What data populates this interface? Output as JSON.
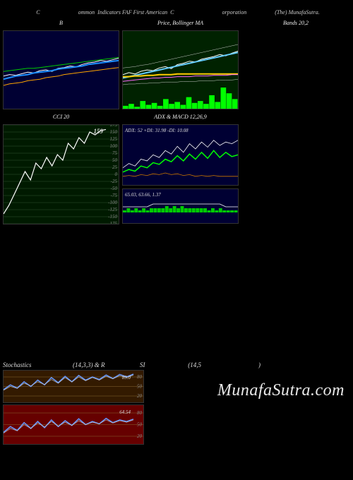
{
  "header": {
    "left": "C",
    "mid1": "ommon  Indicators FAF First American  C",
    "mid2": "orporation",
    "right": "(The) MunafaSutra."
  },
  "panels": {
    "topLeft": {
      "title": "B",
      "bg": "#000033",
      "lines": [
        {
          "color": "#ffffff",
          "width": 1,
          "data": [
            42,
            44,
            43,
            45,
            47,
            46,
            49,
            50,
            48,
            52,
            53,
            55,
            54,
            57,
            59,
            60,
            62,
            61,
            63,
            65
          ]
        },
        {
          "color": "#1e90ff",
          "width": 2,
          "data": [
            38,
            40,
            42,
            43,
            44,
            46,
            47,
            48,
            49,
            51,
            52,
            53,
            54,
            55,
            57,
            58,
            59,
            60,
            61,
            62
          ]
        },
        {
          "color": "#ffa500",
          "width": 1,
          "data": [
            30,
            32,
            33,
            34,
            36,
            37,
            38,
            40,
            41,
            42,
            44,
            45,
            46,
            47,
            48,
            49,
            50,
            51,
            52,
            53
          ]
        },
        {
          "color": "#00cc00",
          "width": 1,
          "data": [
            48,
            49,
            50,
            51,
            52,
            52,
            53,
            54,
            55,
            56,
            57,
            58,
            59,
            60,
            61,
            62,
            63,
            64,
            65,
            66
          ]
        }
      ]
    },
    "topMid": {
      "title": "Price,   Bollinger   MA",
      "bg": "#002200",
      "lines": [
        {
          "color": "#ffffff",
          "width": 1,
          "data": [
            35,
            38,
            36,
            40,
            42,
            41,
            45,
            47,
            44,
            50,
            52,
            55,
            54,
            58,
            60,
            62,
            65,
            63,
            67,
            70
          ]
        },
        {
          "color": "#66ccff",
          "width": 2,
          "data": [
            30,
            32,
            34,
            36,
            38,
            40,
            42,
            44,
            46,
            48,
            50,
            52,
            54,
            56,
            58,
            60,
            62,
            64,
            66,
            68
          ]
        },
        {
          "color": "#ffcc00",
          "width": 2,
          "data": [
            32,
            32,
            33,
            33,
            34,
            34,
            35,
            35,
            35,
            36,
            36,
            36,
            36,
            36,
            36,
            36,
            36,
            36,
            36,
            36
          ]
        },
        {
          "color": "#ff66ff",
          "width": 1,
          "data": [
            25,
            26,
            27,
            28,
            29,
            30,
            30,
            31,
            31,
            32,
            32,
            32,
            33,
            33,
            33,
            34,
            34,
            34,
            35,
            35
          ]
        },
        {
          "color": "#cccccc",
          "width": 0.5,
          "data": [
            45,
            46,
            47,
            49,
            50,
            52,
            54,
            56,
            58,
            60,
            62,
            64,
            66,
            68,
            70,
            72,
            74,
            76,
            78,
            80
          ]
        },
        {
          "color": "#cccccc",
          "width": 0.5,
          "data": [
            20,
            21,
            21,
            22,
            22,
            23,
            23,
            24,
            24,
            24,
            25,
            25,
            25,
            26,
            26,
            26,
            27,
            27,
            27,
            28
          ]
        }
      ],
      "volume": {
        "color": "#00ff00",
        "data": [
          3,
          5,
          2,
          8,
          4,
          6,
          3,
          10,
          5,
          7,
          4,
          12,
          6,
          8,
          5,
          14,
          7,
          22,
          16,
          10
        ]
      }
    },
    "topRight": {
      "title": "Bands 20,2"
    },
    "cci": {
      "title": "CCI 20",
      "bg": "#001a00",
      "grid_color": "#335533",
      "ticks": [
        175,
        150,
        125,
        100,
        75,
        50,
        25,
        0,
        -25,
        -50,
        -75,
        -100,
        -125,
        -150,
        -175
      ],
      "ymin": -175,
      "ymax": 175,
      "value_label": "159",
      "line": {
        "color": "#ffffff",
        "width": 1.2,
        "data": [
          -140,
          -110,
          -70,
          -30,
          10,
          -20,
          40,
          20,
          60,
          30,
          70,
          50,
          110,
          90,
          130,
          110,
          150,
          140,
          155,
          159
        ]
      }
    },
    "adx": {
      "title": "ADX   & MACD 12,26,9",
      "bg": "#000033",
      "label": "ADX: 52  +DI: 31.98 -DI: 10.08",
      "lines": [
        {
          "color": "#ffffff",
          "width": 0.8,
          "data": [
            20,
            25,
            22,
            30,
            28,
            35,
            32,
            40,
            36,
            45,
            38,
            48,
            42,
            50,
            44,
            52,
            46,
            50,
            48,
            52
          ]
        },
        {
          "color": "#00ff00",
          "width": 1.5,
          "data": [
            15,
            18,
            16,
            22,
            20,
            26,
            24,
            30,
            27,
            34,
            28,
            36,
            30,
            38,
            31,
            40,
            32,
            38,
            33,
            35
          ]
        },
        {
          "color": "#cc7700",
          "width": 0.8,
          "data": [
            10,
            11,
            10,
            12,
            11,
            13,
            12,
            14,
            12,
            13,
            11,
            12,
            10,
            11,
            10,
            11,
            10,
            10,
            10,
            10
          ]
        }
      ]
    },
    "macd": {
      "bg": "#000033",
      "label": "65.03,  63.66,   1.37",
      "bars": {
        "color": "#00cc00",
        "data": [
          1,
          2,
          1,
          2,
          1,
          2,
          1,
          2,
          2,
          2,
          2,
          3,
          2,
          3,
          2,
          3,
          2,
          2,
          2,
          2,
          2,
          2,
          1,
          2,
          1,
          2,
          1,
          1,
          1,
          1
        ]
      },
      "line": {
        "color": "#ffffff",
        "width": 0.8,
        "data": [
          2,
          2,
          2,
          2,
          2,
          3,
          3,
          3,
          3,
          3,
          3,
          3,
          3,
          3,
          3,
          3,
          3,
          2,
          2,
          2
        ]
      }
    },
    "stoch": {
      "title": "Stochastics                          (14,3,3) & R                      SI                           (14,5                                    )",
      "upper": {
        "bg": "#331a00",
        "ticks": [
          80,
          50,
          20
        ],
        "value": "89.0",
        "lines": [
          {
            "color": "#6699ff",
            "width": 1.5,
            "data": [
              40,
              55,
              45,
              65,
              50,
              70,
              55,
              78,
              62,
              82,
              65,
              85,
              70,
              80,
              72,
              86,
              75,
              88,
              80,
              89
            ]
          },
          {
            "color": "#cccccc",
            "width": 0.6,
            "data": [
              38,
              50,
              44,
              60,
              52,
              65,
              56,
              72,
              60,
              78,
              64,
              80,
              68,
              78,
              70,
              82,
              74,
              84,
              78,
              86
            ]
          }
        ]
      },
      "lower": {
        "bg": "#660000",
        "ticks": [
          80,
          50,
          20
        ],
        "value": "64.54",
        "lines": [
          {
            "color": "#6699ff",
            "width": 1.5,
            "data": [
              30,
              45,
              35,
              55,
              40,
              58,
              42,
              62,
              45,
              60,
              48,
              65,
              50,
              58,
              52,
              66,
              55,
              62,
              58,
              64
            ]
          },
          {
            "color": "#cccccc",
            "width": 0.6,
            "data": [
              28,
              40,
              34,
              50,
              40,
              54,
              44,
              58,
              46,
              56,
              48,
              60,
              50,
              56,
              52,
              62,
              54,
              60,
              56,
              62
            ]
          }
        ]
      }
    }
  },
  "watermark": "MunafaSutra.com"
}
